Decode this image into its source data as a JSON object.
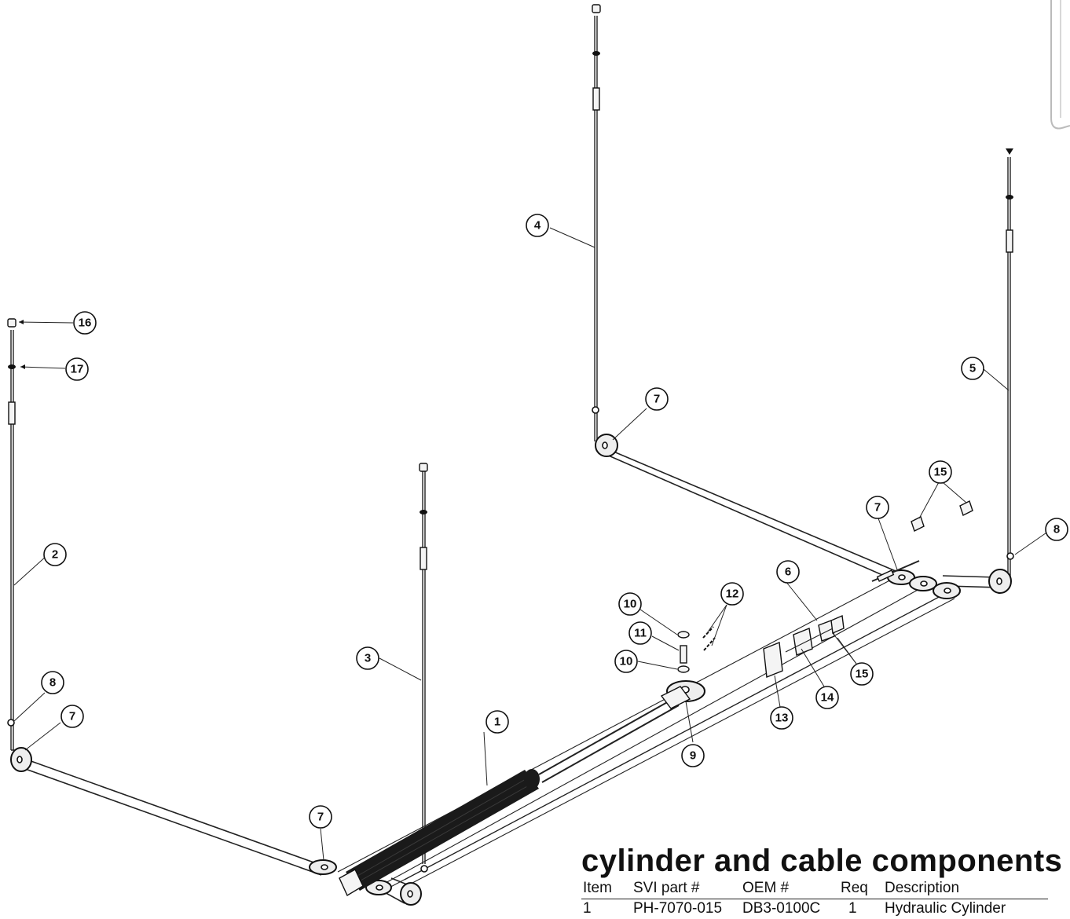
{
  "title": "cylinder and cable components",
  "table": {
    "headers": [
      "Item",
      "SVI part #",
      "OEM #",
      "Req",
      "Description"
    ],
    "row1": [
      "1",
      "PH-7070-015",
      "DB3-0100C",
      "1",
      "Hydraulic Cylinder"
    ]
  },
  "callouts": [
    "1",
    "2",
    "3",
    "4",
    "5",
    "6",
    "7",
    "8",
    "9",
    "10",
    "11",
    "12",
    "13",
    "14",
    "15",
    "16",
    "17"
  ],
  "colors": {
    "line": "#222222",
    "cylinder": "#1a1a1a",
    "background": "#ffffff"
  }
}
